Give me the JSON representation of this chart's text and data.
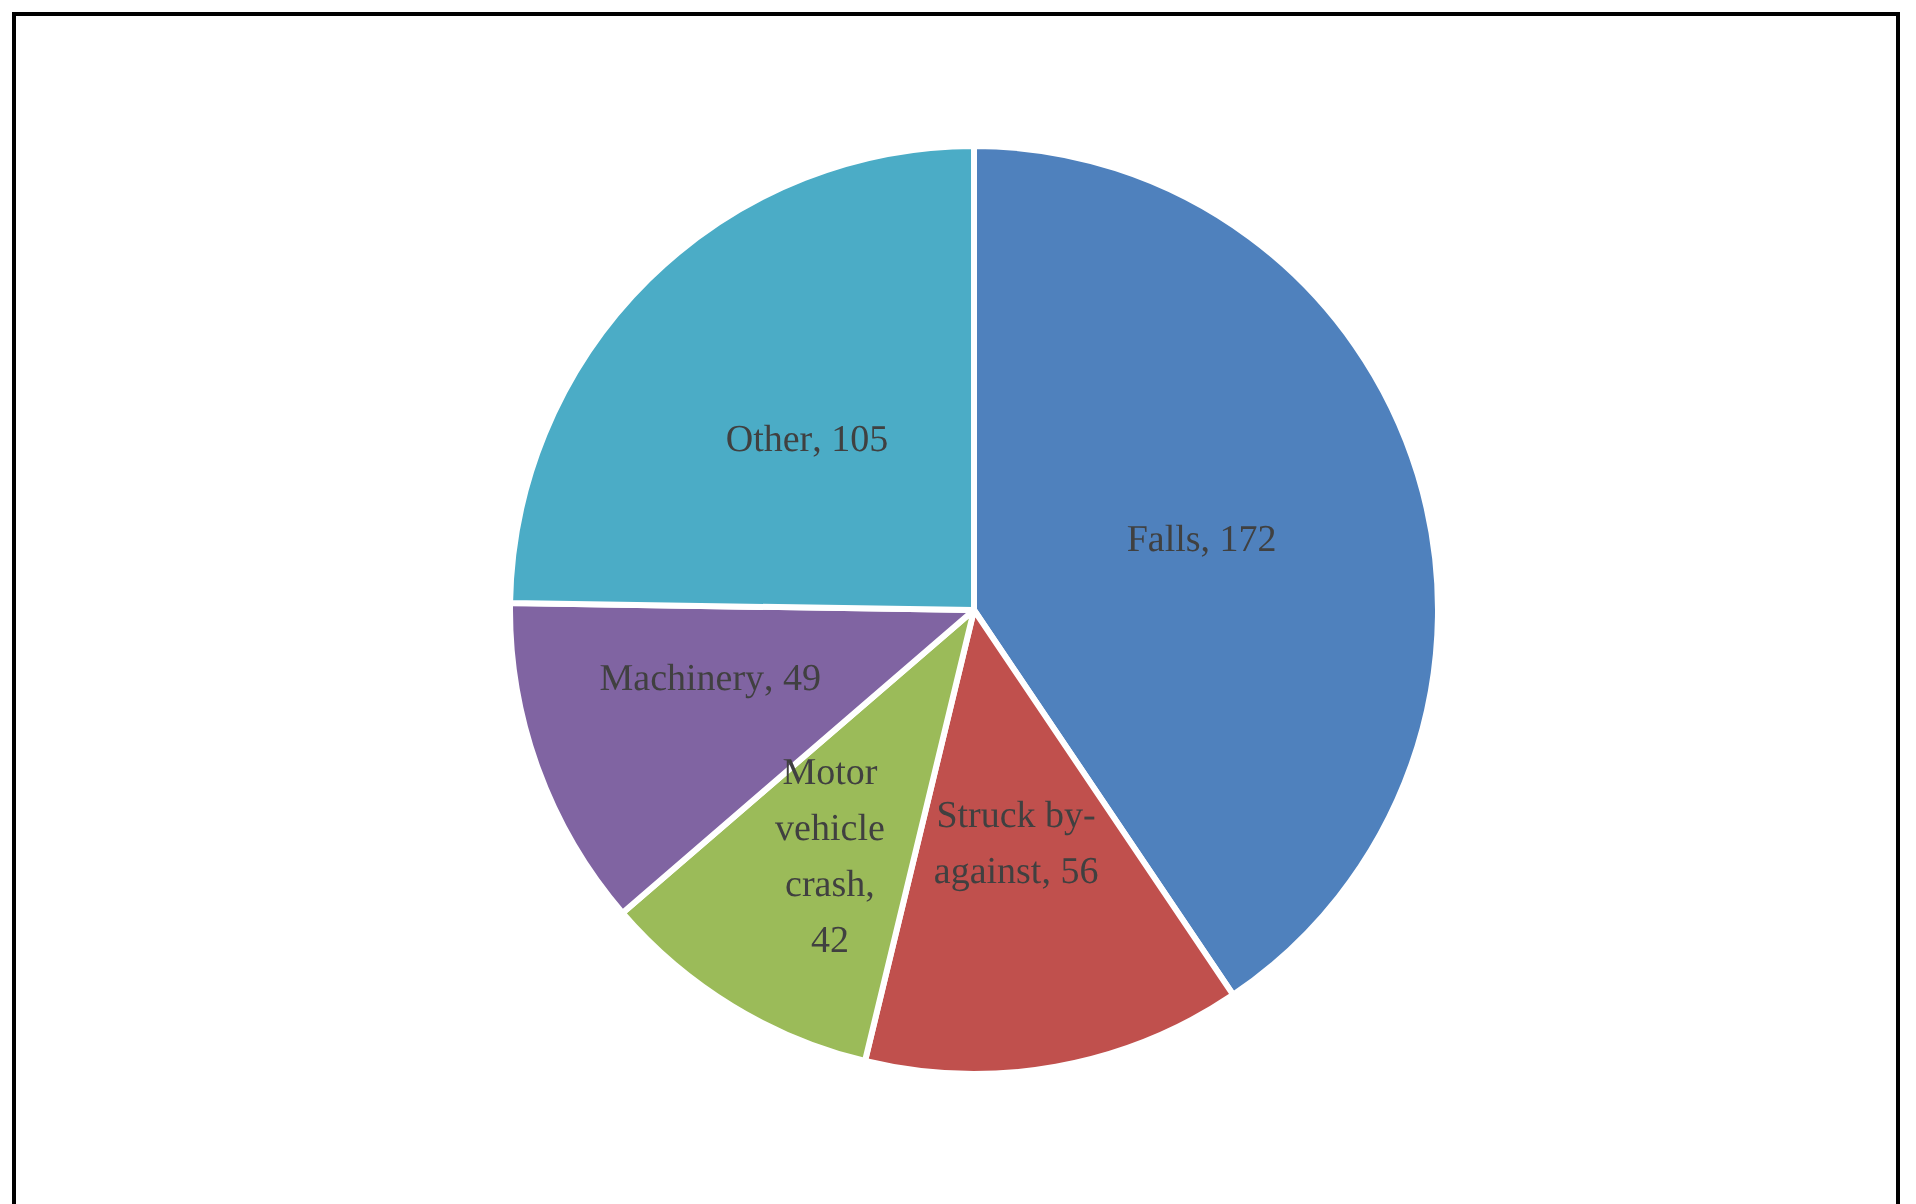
{
  "chart_data": {
    "type": "pie",
    "categories": [
      "Falls",
      "Struck by-against",
      "Motor vehicle crash",
      "Machinery",
      "Other"
    ],
    "values": [
      172,
      56,
      42,
      49,
      105
    ],
    "colors": [
      "#4f81bd",
      "#c0504d",
      "#9bbb59",
      "#8064a2",
      "#4bacc6"
    ],
    "value_labels": [
      ", 172",
      ", 56",
      ", 42",
      ", 49",
      ", 105"
    ],
    "legend": false
  }
}
